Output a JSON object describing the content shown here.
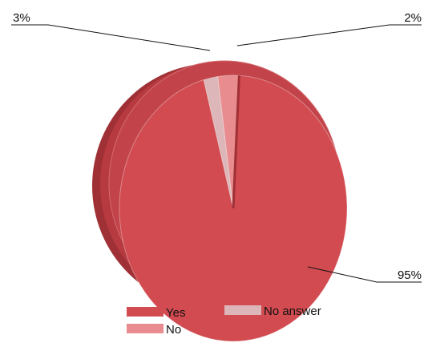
{
  "chart_data": {
    "type": "pie",
    "title": "",
    "slices": [
      {
        "label": "Yes",
        "value": 95,
        "display": "95%",
        "color": "#d14b50"
      },
      {
        "label": "No",
        "value": 3,
        "display": "3%",
        "color": "#e88c8f"
      },
      {
        "label": "No answer",
        "value": 2,
        "display": "2%",
        "color": "#dcb6b8"
      }
    ],
    "legend_position": "bottom"
  }
}
